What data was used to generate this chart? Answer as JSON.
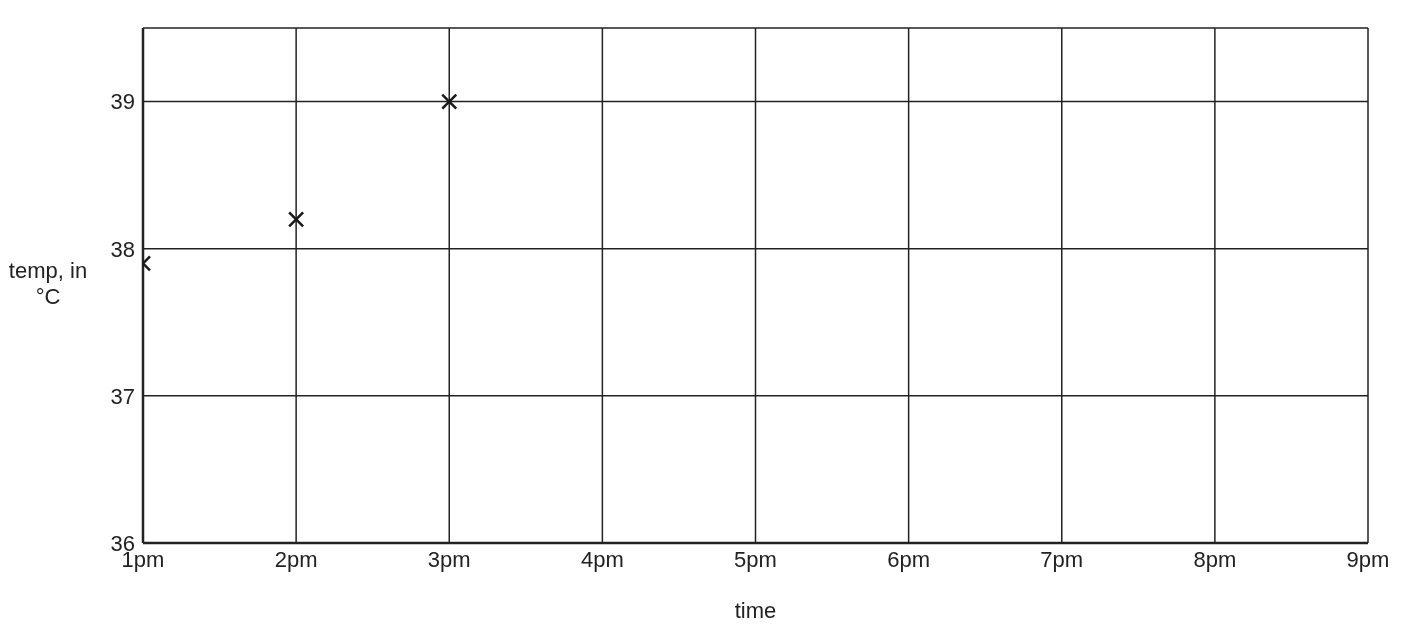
{
  "chart_data": {
    "type": "scatter",
    "xlabel": "time",
    "ylabel": "temp, in °C",
    "categories": [
      "1pm",
      "2pm",
      "3pm",
      "4pm",
      "5pm",
      "6pm",
      "7pm",
      "8pm",
      "9pm"
    ],
    "series": [
      {
        "color": "#1a1a1a",
        "values": [
          37.9,
          38.2,
          39.0,
          null,
          null,
          null,
          null,
          null,
          null
        ]
      }
    ],
    "ylim": [
      36,
      39.5
    ],
    "yticks": [
      36,
      37,
      38,
      39
    ],
    "grid": true,
    "marker": "cross",
    "legend": false
  }
}
